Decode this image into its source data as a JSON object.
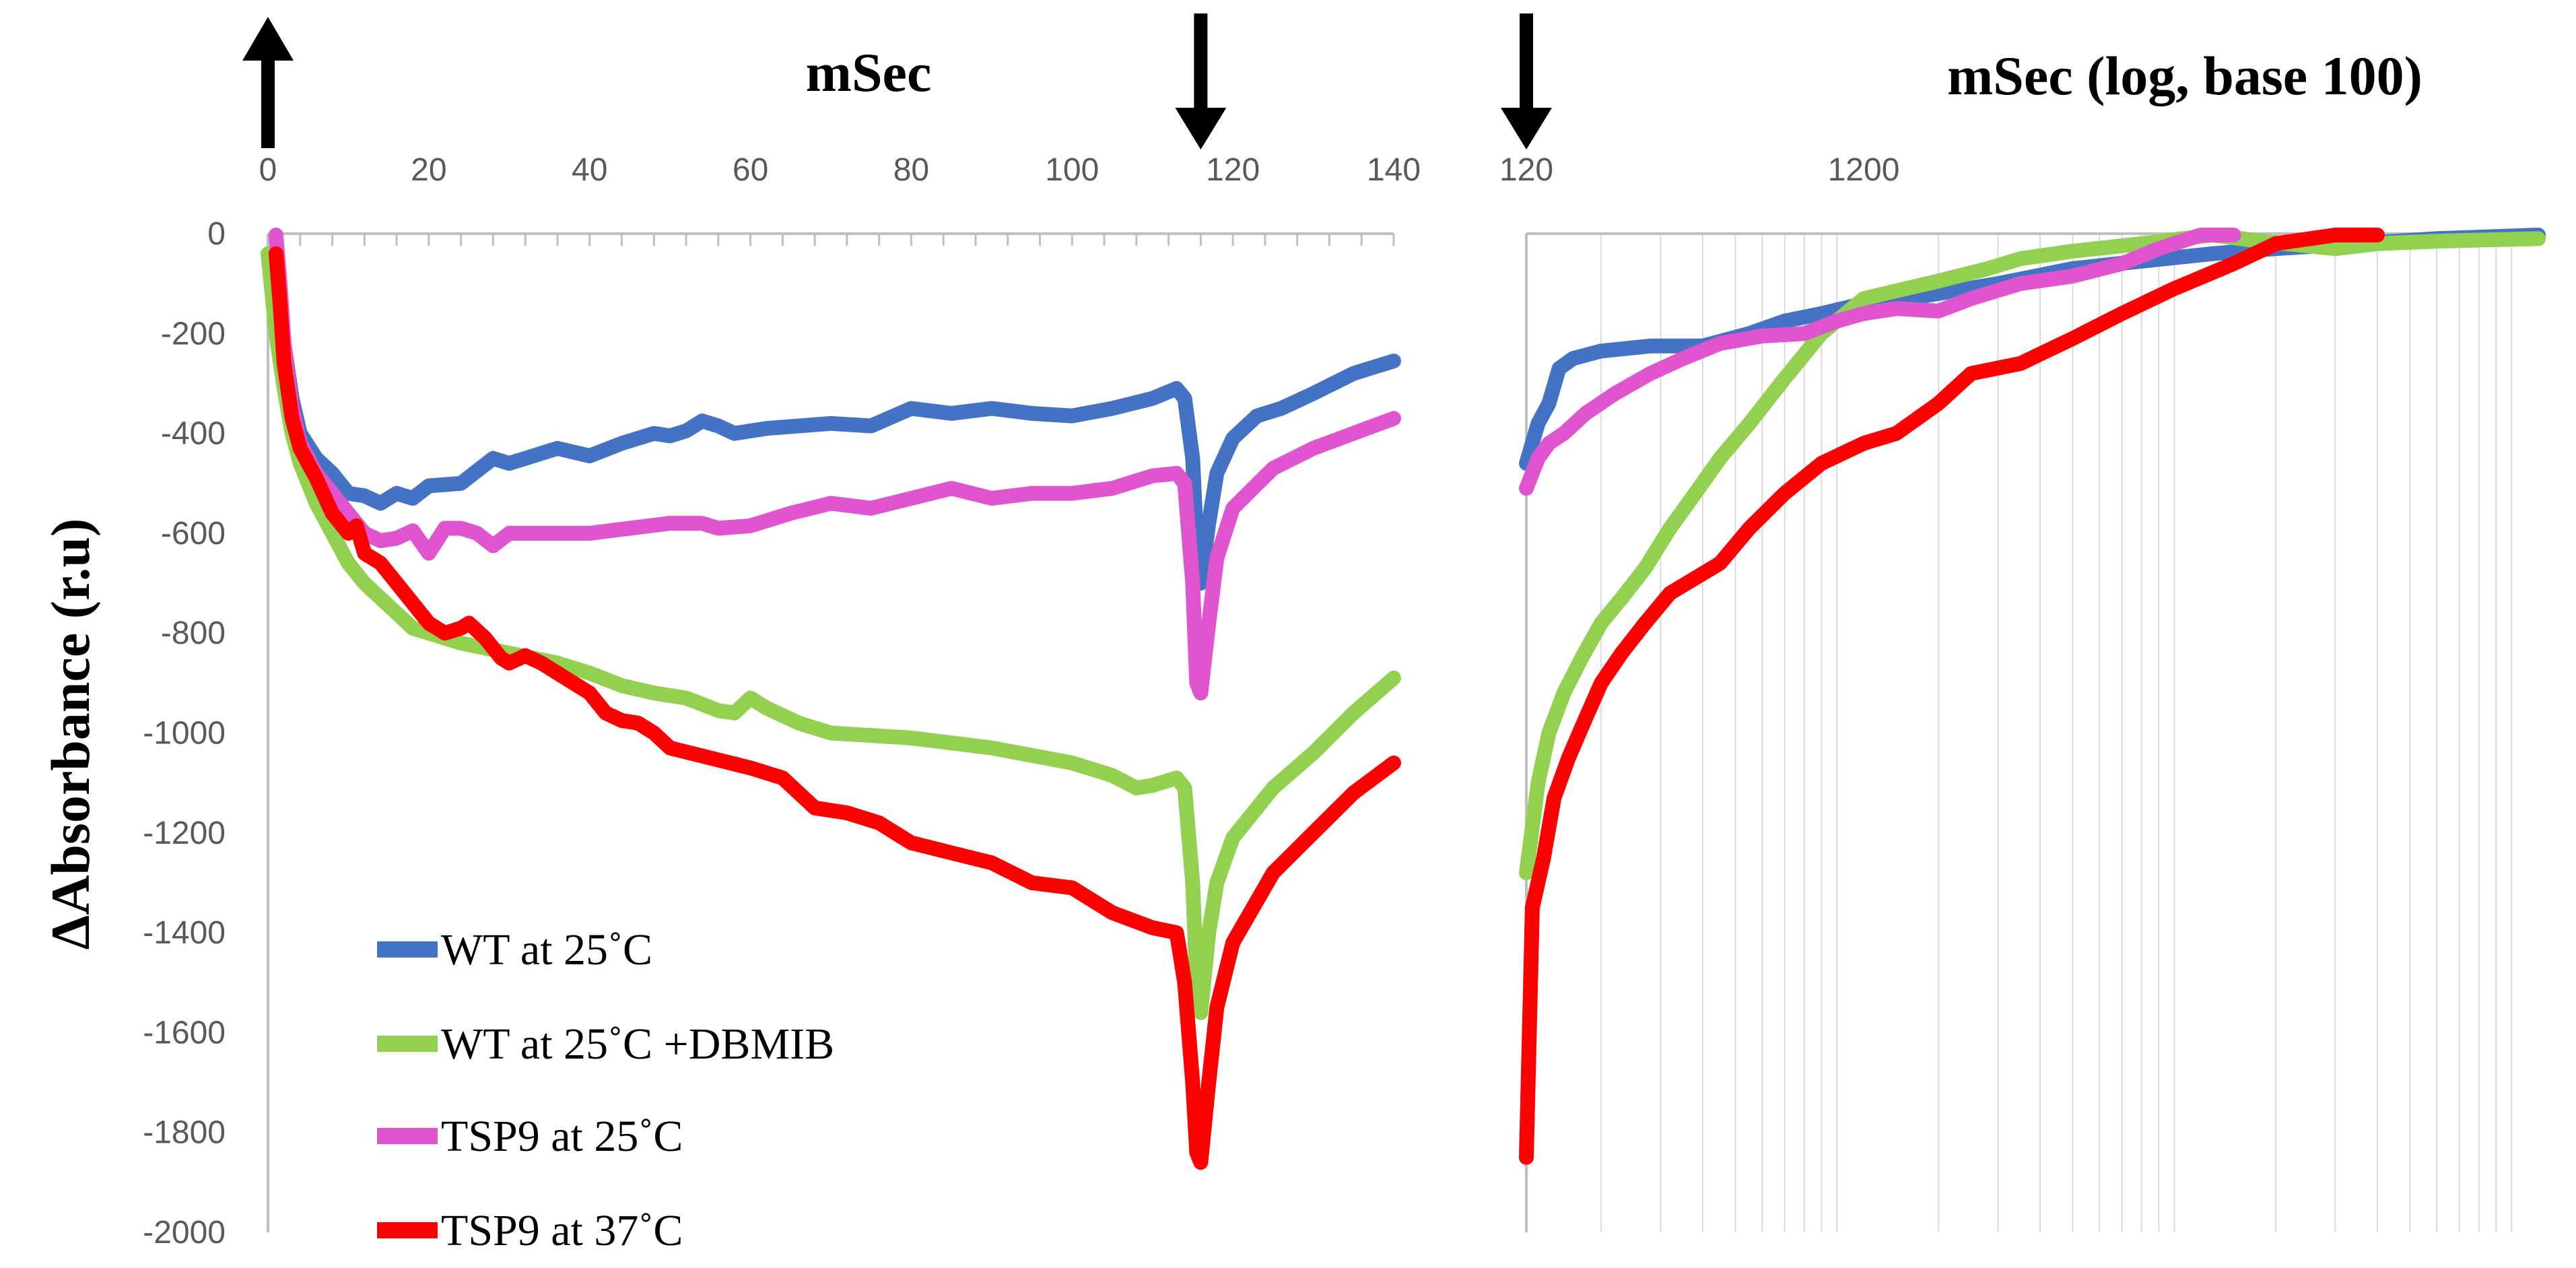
{
  "chart_data": {
    "type": "line",
    "ylabel": "ΔAbsorbance (r.u)",
    "yticks": [
      "0",
      "-200",
      "-400",
      "-600",
      "-800",
      "-1000",
      "-1200",
      "-1400",
      "-1600",
      "-1800",
      "-2000"
    ],
    "ylim": [
      -2000,
      0
    ],
    "linear_panel": {
      "title": "mSec",
      "xlim": [
        0,
        140
      ],
      "xticks": [
        "0",
        "20",
        "40",
        "60",
        "80",
        "100",
        "120",
        "140"
      ]
    },
    "log_panel": {
      "title": "mSec (log, base 100)",
      "xlim": [
        120,
        120000
      ],
      "xticks": [
        "120",
        "1200"
      ]
    },
    "arrows": [
      {
        "name": "flash-on-arrow",
        "direction": "up",
        "x": 0
      },
      {
        "name": "flash-off-arrow",
        "direction": "down",
        "x": 116
      },
      {
        "name": "log-start-arrow",
        "direction": "down",
        "x": 120
      }
    ],
    "series": [
      {
        "name": "WT at 25˚C",
        "color": "#4472C4",
        "linear": [
          [
            1,
            -50
          ],
          [
            2,
            -220
          ],
          [
            3,
            -330
          ],
          [
            4,
            -400
          ],
          [
            6,
            -450
          ],
          [
            8,
            -480
          ],
          [
            10,
            -520
          ],
          [
            12,
            -525
          ],
          [
            14,
            -540
          ],
          [
            16,
            -520
          ],
          [
            18,
            -530
          ],
          [
            20,
            -505
          ],
          [
            24,
            -500
          ],
          [
            28,
            -450
          ],
          [
            30,
            -460
          ],
          [
            34,
            -440
          ],
          [
            36,
            -430
          ],
          [
            40,
            -445
          ],
          [
            44,
            -420
          ],
          [
            48,
            -400
          ],
          [
            50,
            -405
          ],
          [
            52,
            -395
          ],
          [
            54,
            -375
          ],
          [
            56,
            -385
          ],
          [
            58,
            -400
          ],
          [
            62,
            -390
          ],
          [
            70,
            -380
          ],
          [
            75,
            -385
          ],
          [
            80,
            -350
          ],
          [
            85,
            -360
          ],
          [
            90,
            -350
          ],
          [
            95,
            -360
          ],
          [
            100,
            -365
          ],
          [
            105,
            -350
          ],
          [
            110,
            -330
          ],
          [
            113,
            -310
          ],
          [
            114,
            -330
          ],
          [
            115,
            -450
          ],
          [
            115.5,
            -620
          ],
          [
            116,
            -700
          ],
          [
            117,
            -580
          ],
          [
            118,
            -480
          ],
          [
            120,
            -410
          ],
          [
            123,
            -365
          ],
          [
            126,
            -350
          ],
          [
            130,
            -320
          ],
          [
            135,
            -280
          ],
          [
            140,
            -255
          ]
        ],
        "log": [
          [
            120,
            -460
          ],
          [
            130,
            -380
          ],
          [
            140,
            -340
          ],
          [
            150,
            -270
          ],
          [
            165,
            -250
          ],
          [
            200,
            -235
          ],
          [
            280,
            -225
          ],
          [
            400,
            -225
          ],
          [
            550,
            -200
          ],
          [
            700,
            -175
          ],
          [
            900,
            -160
          ],
          [
            1200,
            -140
          ],
          [
            1800,
            -125
          ],
          [
            3000,
            -100
          ],
          [
            5000,
            -70
          ],
          [
            8000,
            -55
          ],
          [
            13000,
            -40
          ],
          [
            20000,
            -30
          ],
          [
            35000,
            -20
          ],
          [
            60000,
            -10
          ],
          [
            120000,
            0
          ]
        ]
      },
      {
        "name": "WT at 25˚C +DBMIB",
        "color": "#92D050",
        "linear": [
          [
            0,
            -40
          ],
          [
            1,
            -200
          ],
          [
            2,
            -310
          ],
          [
            3,
            -400
          ],
          [
            4,
            -460
          ],
          [
            6,
            -540
          ],
          [
            8,
            -600
          ],
          [
            10,
            -660
          ],
          [
            12,
            -700
          ],
          [
            14,
            -730
          ],
          [
            16,
            -760
          ],
          [
            18,
            -790
          ],
          [
            20,
            -800
          ],
          [
            24,
            -820
          ],
          [
            30,
            -840
          ],
          [
            36,
            -860
          ],
          [
            40,
            -880
          ],
          [
            44,
            -905
          ],
          [
            48,
            -920
          ],
          [
            52,
            -930
          ],
          [
            56,
            -955
          ],
          [
            58,
            -960
          ],
          [
            60,
            -930
          ],
          [
            62,
            -950
          ],
          [
            66,
            -980
          ],
          [
            70,
            -1000
          ],
          [
            80,
            -1010
          ],
          [
            90,
            -1030
          ],
          [
            100,
            -1060
          ],
          [
            105,
            -1085
          ],
          [
            108,
            -1110
          ],
          [
            110,
            -1105
          ],
          [
            113,
            -1090
          ],
          [
            114,
            -1110
          ],
          [
            115,
            -1300
          ],
          [
            115.5,
            -1500
          ],
          [
            116,
            -1560
          ],
          [
            117,
            -1400
          ],
          [
            118,
            -1300
          ],
          [
            120,
            -1210
          ],
          [
            125,
            -1110
          ],
          [
            130,
            -1040
          ],
          [
            135,
            -960
          ],
          [
            140,
            -890
          ]
        ],
        "log": [
          [
            120,
            -1280
          ],
          [
            130,
            -1100
          ],
          [
            140,
            -1000
          ],
          [
            155,
            -920
          ],
          [
            175,
            -850
          ],
          [
            200,
            -780
          ],
          [
            230,
            -730
          ],
          [
            270,
            -670
          ],
          [
            320,
            -590
          ],
          [
            380,
            -520
          ],
          [
            450,
            -450
          ],
          [
            550,
            -380
          ],
          [
            700,
            -290
          ],
          [
            900,
            -200
          ],
          [
            1200,
            -130
          ],
          [
            1600,
            -110
          ],
          [
            2000,
            -95
          ],
          [
            2800,
            -70
          ],
          [
            3500,
            -50
          ],
          [
            5000,
            -35
          ],
          [
            8000,
            -20
          ],
          [
            13000,
            0
          ],
          [
            18000,
            -15
          ],
          [
            30000,
            -30
          ],
          [
            40000,
            -20
          ],
          [
            60000,
            -15
          ],
          [
            120000,
            -10
          ]
        ]
      },
      {
        "name": "TSP9 at 25˚C",
        "color": "#E055CF",
        "linear": [
          [
            1,
            0
          ],
          [
            1.5,
            -100
          ],
          [
            2,
            -220
          ],
          [
            3,
            -350
          ],
          [
            4,
            -420
          ],
          [
            6,
            -480
          ],
          [
            8,
            -520
          ],
          [
            10,
            -560
          ],
          [
            12,
            -600
          ],
          [
            14,
            -615
          ],
          [
            16,
            -610
          ],
          [
            18,
            -595
          ],
          [
            20,
            -640
          ],
          [
            22,
            -590
          ],
          [
            24,
            -590
          ],
          [
            26,
            -600
          ],
          [
            28,
            -625
          ],
          [
            30,
            -600
          ],
          [
            40,
            -600
          ],
          [
            50,
            -580
          ],
          [
            54,
            -580
          ],
          [
            56,
            -590
          ],
          [
            60,
            -585
          ],
          [
            65,
            -560
          ],
          [
            70,
            -540
          ],
          [
            75,
            -550
          ],
          [
            80,
            -530
          ],
          [
            85,
            -510
          ],
          [
            90,
            -530
          ],
          [
            95,
            -520
          ],
          [
            100,
            -520
          ],
          [
            105,
            -510
          ],
          [
            110,
            -485
          ],
          [
            113,
            -480
          ],
          [
            114,
            -500
          ],
          [
            115,
            -700
          ],
          [
            115.5,
            -900
          ],
          [
            116,
            -920
          ],
          [
            117,
            -780
          ],
          [
            118,
            -650
          ],
          [
            120,
            -550
          ],
          [
            125,
            -470
          ],
          [
            130,
            -430
          ],
          [
            135,
            -400
          ],
          [
            140,
            -370
          ]
        ],
        "log": [
          [
            120,
            -510
          ],
          [
            130,
            -450
          ],
          [
            140,
            -420
          ],
          [
            155,
            -400
          ],
          [
            180,
            -360
          ],
          [
            220,
            -320
          ],
          [
            280,
            -280
          ],
          [
            350,
            -250
          ],
          [
            450,
            -220
          ],
          [
            600,
            -205
          ],
          [
            800,
            -200
          ],
          [
            1000,
            -175
          ],
          [
            1200,
            -160
          ],
          [
            1500,
            -150
          ],
          [
            2000,
            -155
          ],
          [
            2500,
            -130
          ],
          [
            3500,
            -100
          ],
          [
            5000,
            -85
          ],
          [
            7000,
            -60
          ],
          [
            9000,
            -30
          ],
          [
            12000,
            0
          ],
          [
            15000,
            0
          ]
        ]
      },
      {
        "name": "TSP9 at 37˚C",
        "color": "#FF0000",
        "linear": [
          [
            1,
            -40
          ],
          [
            1.5,
            -140
          ],
          [
            2,
            -260
          ],
          [
            3,
            -370
          ],
          [
            4,
            -430
          ],
          [
            6,
            -490
          ],
          [
            8,
            -560
          ],
          [
            10,
            -600
          ],
          [
            11,
            -585
          ],
          [
            12,
            -640
          ],
          [
            14,
            -660
          ],
          [
            16,
            -700
          ],
          [
            18,
            -740
          ],
          [
            20,
            -780
          ],
          [
            22,
            -800
          ],
          [
            24,
            -790
          ],
          [
            25,
            -780
          ],
          [
            27,
            -810
          ],
          [
            29,
            -850
          ],
          [
            30,
            -860
          ],
          [
            32,
            -845
          ],
          [
            34,
            -860
          ],
          [
            36,
            -880
          ],
          [
            38,
            -900
          ],
          [
            40,
            -920
          ],
          [
            42,
            -960
          ],
          [
            44,
            -975
          ],
          [
            46,
            -980
          ],
          [
            48,
            -1000
          ],
          [
            50,
            -1030
          ],
          [
            55,
            -1050
          ],
          [
            60,
            -1070
          ],
          [
            64,
            -1090
          ],
          [
            66,
            -1120
          ],
          [
            68,
            -1150
          ],
          [
            72,
            -1160
          ],
          [
            76,
            -1180
          ],
          [
            80,
            -1220
          ],
          [
            85,
            -1240
          ],
          [
            90,
            -1260
          ],
          [
            95,
            -1300
          ],
          [
            100,
            -1310
          ],
          [
            105,
            -1360
          ],
          [
            110,
            -1390
          ],
          [
            113,
            -1400
          ],
          [
            114,
            -1500
          ],
          [
            115,
            -1700
          ],
          [
            115.5,
            -1840
          ],
          [
            116,
            -1860
          ],
          [
            117,
            -1700
          ],
          [
            118,
            -1550
          ],
          [
            120,
            -1420
          ],
          [
            125,
            -1280
          ],
          [
            130,
            -1200
          ],
          [
            135,
            -1120
          ],
          [
            140,
            -1060
          ]
        ],
        "log": [
          [
            120,
            -1850
          ],
          [
            125,
            -1350
          ],
          [
            135,
            -1250
          ],
          [
            145,
            -1130
          ],
          [
            160,
            -1050
          ],
          [
            180,
            -970
          ],
          [
            200,
            -900
          ],
          [
            230,
            -840
          ],
          [
            270,
            -780
          ],
          [
            320,
            -720
          ],
          [
            380,
            -690
          ],
          [
            450,
            -660
          ],
          [
            550,
            -590
          ],
          [
            700,
            -520
          ],
          [
            900,
            -460
          ],
          [
            1200,
            -420
          ],
          [
            1500,
            -400
          ],
          [
            2000,
            -340
          ],
          [
            2500,
            -280
          ],
          [
            3500,
            -260
          ],
          [
            5000,
            -210
          ],
          [
            7000,
            -160
          ],
          [
            10000,
            -110
          ],
          [
            15000,
            -60
          ],
          [
            20000,
            -20
          ],
          [
            30000,
            0
          ],
          [
            40000,
            0
          ]
        ]
      }
    ],
    "legend_position": "bottom-left"
  }
}
